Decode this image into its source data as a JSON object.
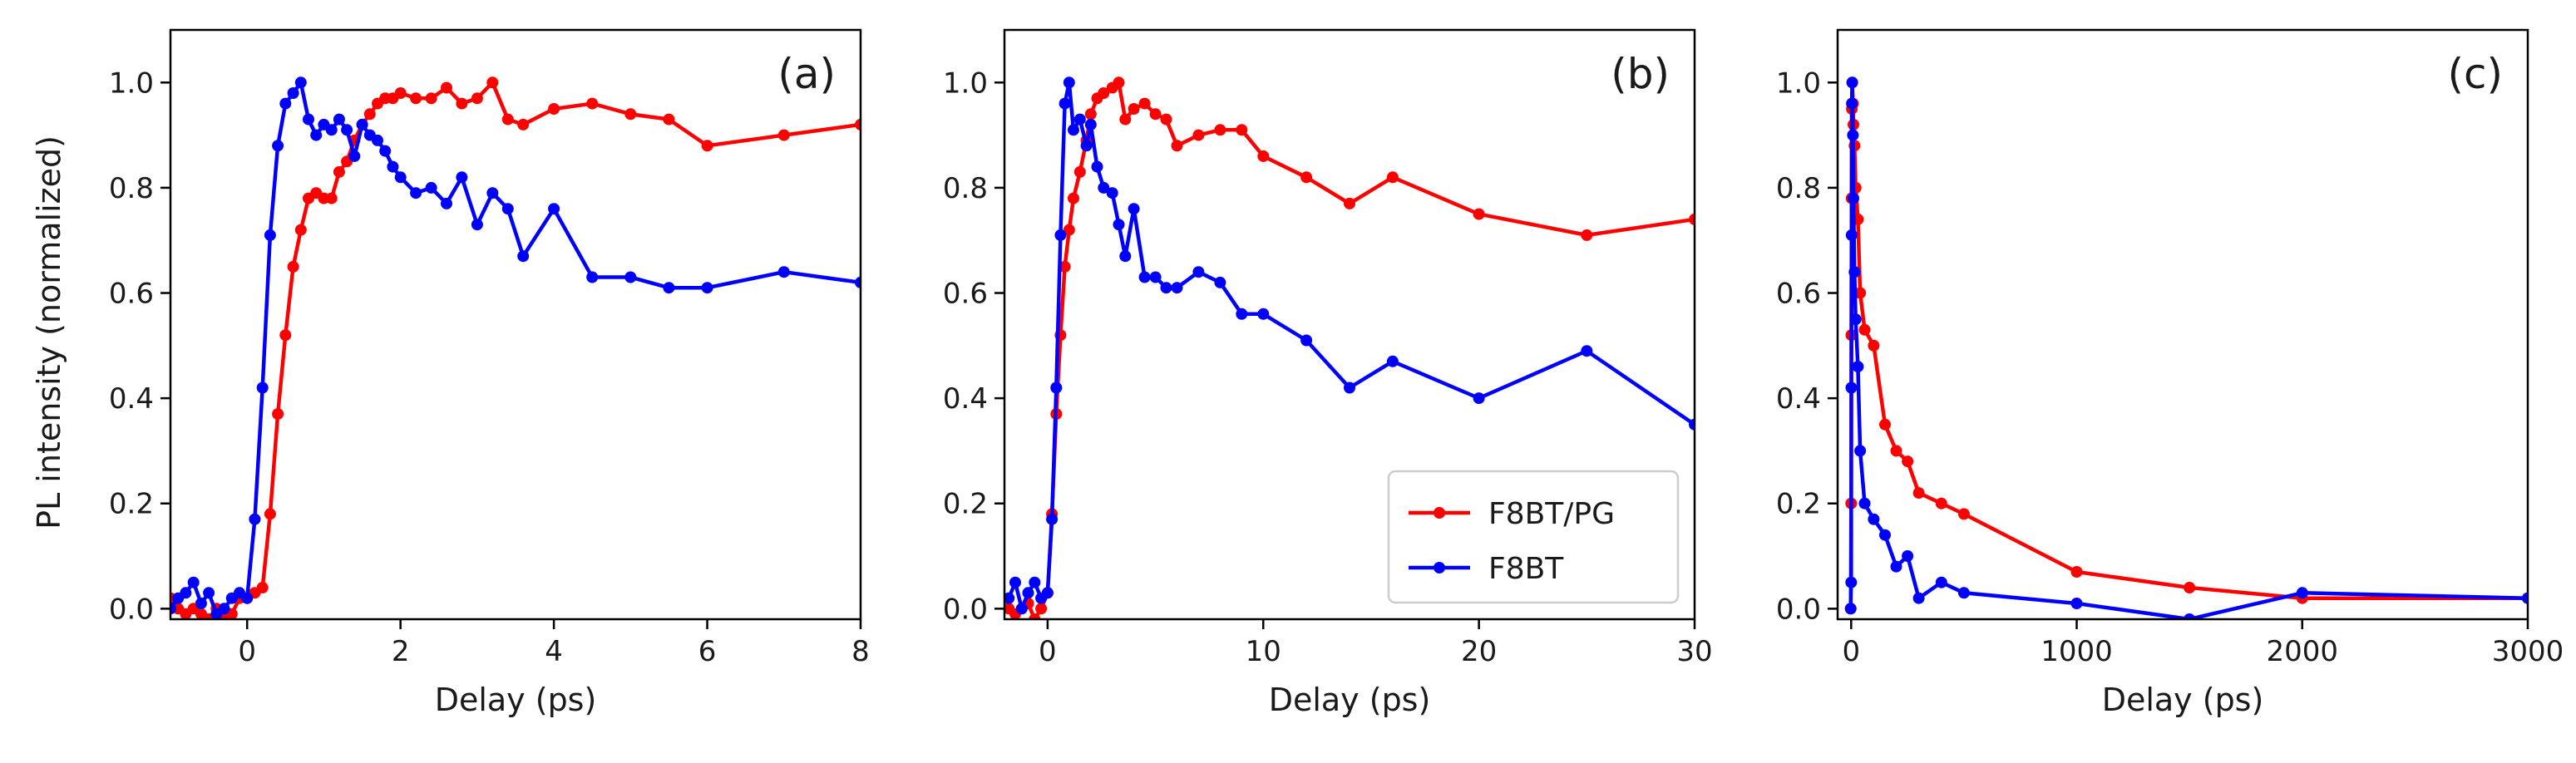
{
  "figure": {
    "ylabel": "PL intensity (normalized)"
  },
  "colors": {
    "F8BT/PG": "#ff0000",
    "F8BT": "#0000ff",
    "axis": "#000000"
  },
  "legend": {
    "entries": [
      "F8BT/PG",
      "F8BT"
    ],
    "panel": "b",
    "placement": "lower-right"
  },
  "chart_data": [
    {
      "type": "line",
      "panel": "(a)",
      "xlabel": "Delay (ps)",
      "ylabel": "PL intensity (normalized)",
      "xlim": [
        -1,
        8
      ],
      "ylim": [
        -0.02,
        1.1
      ],
      "xticks": [
        0,
        2,
        4,
        6,
        8
      ],
      "xtick_labels": [
        "0",
        "2",
        "4",
        "6",
        "8"
      ],
      "yticks": [
        0.0,
        0.2,
        0.4,
        0.6,
        0.8,
        1.0
      ],
      "ytick_labels": [
        "0.0",
        "0.2",
        "0.4",
        "0.6",
        "0.8",
        "1.0"
      ],
      "series": [
        {
          "name": "F8BT/PG",
          "x": [
            -1.0,
            -0.9,
            -0.8,
            -0.7,
            -0.6,
            -0.5,
            -0.4,
            -0.3,
            -0.2,
            -0.1,
            0.0,
            0.1,
            0.2,
            0.3,
            0.4,
            0.5,
            0.6,
            0.7,
            0.8,
            0.9,
            1.0,
            1.1,
            1.2,
            1.3,
            1.4,
            1.5,
            1.6,
            1.7,
            1.8,
            1.9,
            2.0,
            2.2,
            2.4,
            2.6,
            2.8,
            3.0,
            3.2,
            3.4,
            3.6,
            4.0,
            4.5,
            5.0,
            5.5,
            6.0,
            7.0,
            8.0
          ],
          "y": [
            0.02,
            0.0,
            -0.01,
            0.0,
            -0.01,
            -0.02,
            0.0,
            -0.02,
            -0.01,
            0.02,
            0.02,
            0.03,
            0.04,
            0.18,
            0.37,
            0.52,
            0.65,
            0.72,
            0.78,
            0.79,
            0.78,
            0.78,
            0.83,
            0.85,
            0.89,
            0.92,
            0.94,
            0.96,
            0.97,
            0.97,
            0.98,
            0.97,
            0.97,
            0.99,
            0.96,
            0.97,
            1.0,
            0.93,
            0.92,
            0.95,
            0.96,
            0.94,
            0.93,
            0.88,
            0.9,
            0.92
          ]
        },
        {
          "name": "F8BT",
          "x": [
            -1.0,
            -0.9,
            -0.8,
            -0.7,
            -0.6,
            -0.5,
            -0.4,
            -0.3,
            -0.2,
            -0.1,
            0.0,
            0.1,
            0.2,
            0.3,
            0.4,
            0.5,
            0.6,
            0.7,
            0.8,
            0.9,
            1.0,
            1.1,
            1.2,
            1.3,
            1.4,
            1.5,
            1.6,
            1.7,
            1.8,
            1.9,
            2.0,
            2.2,
            2.4,
            2.6,
            2.8,
            3.0,
            3.2,
            3.4,
            3.6,
            4.0,
            4.5,
            5.0,
            5.5,
            6.0,
            7.0,
            8.0
          ],
          "y": [
            0.0,
            0.02,
            0.03,
            0.05,
            0.01,
            0.03,
            -0.01,
            0.0,
            0.02,
            0.03,
            0.02,
            0.17,
            0.42,
            0.71,
            0.88,
            0.96,
            0.98,
            1.0,
            0.93,
            0.9,
            0.92,
            0.91,
            0.93,
            0.91,
            0.86,
            0.92,
            0.9,
            0.89,
            0.87,
            0.84,
            0.82,
            0.79,
            0.8,
            0.77,
            0.82,
            0.73,
            0.79,
            0.76,
            0.67,
            0.76,
            0.63,
            0.63,
            0.61,
            0.61,
            0.64,
            0.62
          ]
        }
      ]
    },
    {
      "type": "line",
      "panel": "(b)",
      "xlabel": "Delay (ps)",
      "xlim": [
        -2,
        30
      ],
      "ylim": [
        -0.02,
        1.1
      ],
      "xticks": [
        0,
        10,
        20,
        30
      ],
      "xtick_labels": [
        "0",
        "10",
        "20",
        "30"
      ],
      "yticks": [
        0.0,
        0.2,
        0.4,
        0.6,
        0.8,
        1.0
      ],
      "ytick_labels": [
        "0.0",
        "0.2",
        "0.4",
        "0.6",
        "0.8",
        "1.0"
      ],
      "series": [
        {
          "name": "F8BT/PG",
          "x": [
            -1.8,
            -1.5,
            -1.2,
            -0.9,
            -0.6,
            -0.3,
            0.0,
            0.2,
            0.4,
            0.6,
            0.8,
            1.0,
            1.2,
            1.5,
            1.8,
            2.0,
            2.3,
            2.6,
            3.0,
            3.3,
            3.6,
            4.0,
            4.5,
            5.0,
            5.5,
            6.0,
            7.0,
            8.0,
            9.0,
            10.0,
            12.0,
            14.0,
            16.0,
            20.0,
            25.0,
            30.0
          ],
          "y": [
            0.0,
            -0.01,
            0.0,
            0.01,
            -0.02,
            0.0,
            0.03,
            0.18,
            0.37,
            0.52,
            0.65,
            0.72,
            0.78,
            0.83,
            0.89,
            0.94,
            0.97,
            0.98,
            0.99,
            1.0,
            0.93,
            0.95,
            0.96,
            0.94,
            0.93,
            0.88,
            0.9,
            0.91,
            0.91,
            0.86,
            0.82,
            0.77,
            0.82,
            0.75,
            0.71,
            0.74
          ]
        },
        {
          "name": "F8BT",
          "x": [
            -1.8,
            -1.5,
            -1.2,
            -0.9,
            -0.6,
            -0.3,
            0.0,
            0.2,
            0.4,
            0.6,
            0.8,
            1.0,
            1.2,
            1.5,
            1.8,
            2.0,
            2.3,
            2.6,
            3.0,
            3.3,
            3.6,
            4.0,
            4.5,
            5.0,
            5.5,
            6.0,
            7.0,
            8.0,
            9.0,
            10.0,
            12.0,
            14.0,
            16.0,
            20.0,
            25.0,
            30.0
          ],
          "y": [
            0.02,
            0.05,
            0.0,
            0.03,
            0.05,
            0.02,
            0.03,
            0.17,
            0.42,
            0.71,
            0.96,
            1.0,
            0.91,
            0.93,
            0.88,
            0.92,
            0.84,
            0.8,
            0.79,
            0.73,
            0.67,
            0.76,
            0.63,
            0.63,
            0.61,
            0.61,
            0.64,
            0.62,
            0.56,
            0.56,
            0.51,
            0.42,
            0.47,
            0.4,
            0.49,
            0.35
          ]
        }
      ]
    },
    {
      "type": "line",
      "panel": "(c)",
      "xlabel": "Delay (ps)",
      "xlim": [
        -60,
        3000
      ],
      "ylim": [
        -0.02,
        1.1
      ],
      "xticks": [
        0,
        1000,
        2000,
        3000
      ],
      "xtick_labels": [
        "0",
        "1000",
        "2000",
        "3000"
      ],
      "yticks": [
        0.0,
        0.2,
        0.4,
        0.6,
        0.8,
        1.0
      ],
      "ytick_labels": [
        "0.0",
        "0.2",
        "0.4",
        "0.6",
        "0.8",
        "1.0"
      ],
      "series": [
        {
          "name": "F8BT/PG",
          "x": [
            -2,
            0,
            1,
            2,
            3,
            5,
            8,
            10,
            15,
            20,
            30,
            40,
            60,
            100,
            150,
            200,
            250,
            300,
            400,
            500,
            1000,
            1500,
            2000,
            3000
          ],
          "y": [
            0.0,
            0.2,
            0.52,
            0.78,
            0.95,
            1.0,
            0.96,
            0.92,
            0.88,
            0.8,
            0.74,
            0.6,
            0.53,
            0.5,
            0.35,
            0.3,
            0.28,
            0.22,
            0.2,
            0.18,
            0.07,
            0.04,
            0.02,
            0.02
          ]
        },
        {
          "name": "F8BT",
          "x": [
            -2,
            0,
            1,
            2,
            3,
            5,
            8,
            10,
            15,
            20,
            30,
            40,
            60,
            100,
            150,
            200,
            250,
            300,
            400,
            500,
            1000,
            1500,
            2000,
            3000
          ],
          "y": [
            0.0,
            0.05,
            0.42,
            0.71,
            0.96,
            1.0,
            0.9,
            0.78,
            0.64,
            0.55,
            0.46,
            0.3,
            0.2,
            0.17,
            0.14,
            0.08,
            0.1,
            0.02,
            0.05,
            0.03,
            0.01,
            -0.02,
            0.03,
            0.02
          ]
        }
      ]
    }
  ]
}
